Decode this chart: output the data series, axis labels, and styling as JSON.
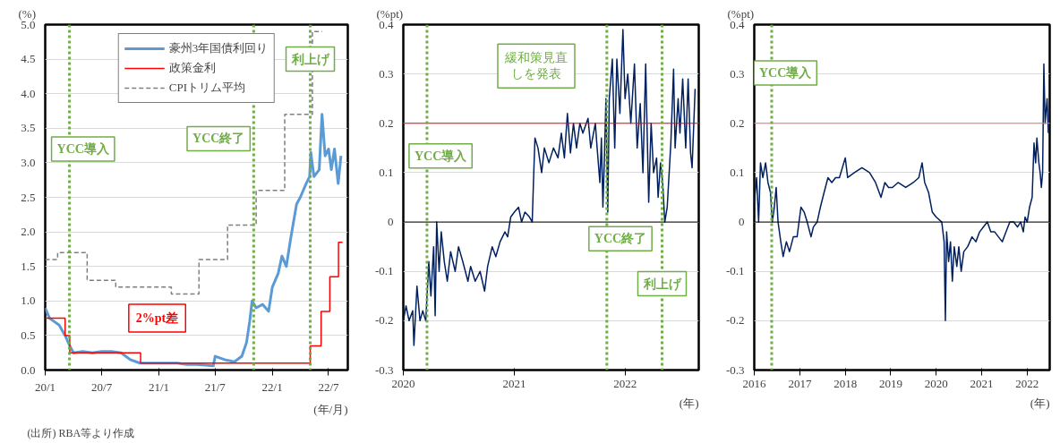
{
  "chart_data": [
    {
      "type": "line",
      "ylabel": "(%)",
      "xlabel": "(年/月)",
      "xlim": [
        "2020-01-01",
        "2022-09-01"
      ],
      "ylim": [
        0,
        5
      ],
      "xticks": [
        {
          "value": "2020-01",
          "label": "20/1"
        },
        {
          "value": "2020-07",
          "label": "20/7"
        },
        {
          "value": "2021-01",
          "label": "21/1"
        },
        {
          "value": "2021-07",
          "label": "21/7"
        },
        {
          "value": "2022-01",
          "label": "22/1"
        },
        {
          "value": "2022-07",
          "label": "22/7"
        }
      ],
      "yticks": [
        {
          "value": 0,
          "label": "0.0"
        },
        {
          "value": 0.5,
          "label": "0.5"
        },
        {
          "value": 1,
          "label": "1.0"
        },
        {
          "value": 1.5,
          "label": "1.5"
        },
        {
          "value": 2,
          "label": "2.0"
        },
        {
          "value": 2.5,
          "label": "2.5"
        },
        {
          "value": 3,
          "label": "3.0"
        },
        {
          "value": 3.5,
          "label": "3.5"
        },
        {
          "value": 4,
          "label": "4.0"
        },
        {
          "value": 4.5,
          "label": "4.5"
        },
        {
          "value": 5,
          "label": "5.0"
        }
      ],
      "grid": "y",
      "legend": "top",
      "series": [
        {
          "name": "豪州3年国債利回り",
          "type": "line",
          "color": "#5b9bd5",
          "x": [
            "2020-01-01",
            "2020-01-15",
            "2020-02-15",
            "2020-03-05",
            "2020-03-20",
            "2020-04-01",
            "2020-05-01",
            "2020-06-01",
            "2020-07-01",
            "2020-08-01",
            "2020-09-01",
            "2020-10-01",
            "2020-11-01",
            "2020-12-01",
            "2021-01-01",
            "2021-02-01",
            "2021-03-01",
            "2021-04-01",
            "2021-05-01",
            "2021-06-01",
            "2021-06-25",
            "2021-07-01",
            "2021-08-01",
            "2021-09-01",
            "2021-09-25",
            "2021-10-10",
            "2021-10-20",
            "2021-10-28",
            "2021-11-10",
            "2021-12-01",
            "2021-12-20",
            "2022-01-01",
            "2022-01-20",
            "2022-02-01",
            "2022-02-15",
            "2022-03-01",
            "2022-03-20",
            "2022-04-01",
            "2022-04-20",
            "2022-05-01",
            "2022-05-05",
            "2022-05-15",
            "2022-06-01",
            "2022-06-10",
            "2022-06-20",
            "2022-07-01",
            "2022-07-10",
            "2022-07-20",
            "2022-08-01",
            "2022-08-10"
          ],
          "values": [
            0.9,
            0.75,
            0.65,
            0.5,
            0.35,
            0.25,
            0.27,
            0.25,
            0.27,
            0.27,
            0.25,
            0.15,
            0.1,
            0.1,
            0.1,
            0.1,
            0.1,
            0.08,
            0.08,
            0.07,
            0.06,
            0.2,
            0.15,
            0.12,
            0.2,
            0.4,
            0.7,
            1.0,
            0.9,
            0.95,
            0.85,
            1.2,
            1.4,
            1.65,
            1.5,
            1.9,
            2.4,
            2.5,
            2.7,
            2.8,
            3.15,
            2.8,
            2.9,
            3.7,
            3.1,
            3.2,
            2.9,
            3.2,
            2.7,
            3.1
          ]
        },
        {
          "name": "政策金利",
          "type": "step",
          "color": "#ff0000",
          "x": [
            "2020-01-01",
            "2020-03-05",
            "2020-03-20",
            "2020-11-03",
            "2022-05-03",
            "2022-06-07",
            "2022-07-05",
            "2022-08-02",
            "2022-08-15"
          ],
          "values": [
            0.75,
            0.5,
            0.25,
            0.1,
            0.35,
            0.85,
            1.35,
            1.85,
            1.85
          ]
        },
        {
          "name": "CPIトリム平均",
          "type": "step",
          "line_style": "dashed",
          "color": "#7f7f7f",
          "x": [
            "2020-01-01",
            "2020-02-10",
            "2020-05-15",
            "2020-08-15",
            "2021-02-10",
            "2021-05-10",
            "2021-08-10",
            "2021-11-10",
            "2022-02-10",
            "2022-05-10",
            "2022-06-10"
          ],
          "values": [
            1.6,
            1.7,
            1.3,
            1.2,
            1.1,
            1.6,
            2.1,
            2.6,
            3.7,
            4.9,
            4.9
          ]
        }
      ],
      "ref_lines": [
        {
          "axis": "x",
          "value": "2020-03-19",
          "label": "YCC導入",
          "color": "#70ad47",
          "line_style": "dotted"
        },
        {
          "axis": "x",
          "value": "2021-11-02",
          "label": "YCC終了",
          "color": "#70ad47",
          "line_style": "dotted"
        },
        {
          "axis": "x",
          "value": "2022-05-03",
          "label": "利上げ",
          "color": "#70ad47",
          "line_style": "dotted"
        }
      ],
      "annotations": [
        "2%pt差",
        "(出所) RBA等より作成"
      ]
    },
    {
      "type": "line",
      "ylabel": "(%pt)",
      "xlabel": "(年)",
      "xlim": [
        "2020-01-01",
        "2022-09-01"
      ],
      "ylim": [
        -0.3,
        0.4
      ],
      "xticks": [
        {
          "value": "2020",
          "label": "2020"
        },
        {
          "value": "2021",
          "label": "2021"
        },
        {
          "value": "2022",
          "label": "2022"
        }
      ],
      "yticks": [
        -0.3,
        -0.2,
        -0.1,
        0,
        0.1,
        0.2,
        0.3,
        0.4
      ],
      "grid": "y",
      "series": [
        {
          "type": "line",
          "color": "#002060",
          "x": [
            "2020-01-01",
            "2020-01-10",
            "2020-01-20",
            "2020-02-01",
            "2020-02-05",
            "2020-02-15",
            "2020-02-25",
            "2020-03-05",
            "2020-03-15",
            "2020-03-25",
            "2020-04-01",
            "2020-04-10",
            "2020-04-15",
            "2020-04-20",
            "2020-04-28",
            "2020-05-05",
            "2020-05-15",
            "2020-05-25",
            "2020-06-05",
            "2020-06-20",
            "2020-07-01",
            "2020-07-15",
            "2020-08-01",
            "2020-08-10",
            "2020-08-25",
            "2020-09-10",
            "2020-09-25",
            "2020-10-05",
            "2020-10-20",
            "2020-11-01",
            "2020-11-15",
            "2020-12-01",
            "2020-12-10",
            "2020-12-20",
            "2021-01-01",
            "2021-01-15",
            "2021-01-25",
            "2021-02-05",
            "2021-02-20",
            "2021-03-01",
            "2021-03-05",
            "2021-03-10",
            "2021-03-20",
            "2021-04-01",
            "2021-04-10",
            "2021-04-25",
            "2021-05-10",
            "2021-05-25",
            "2021-06-05",
            "2021-06-15",
            "2021-06-25",
            "2021-07-05",
            "2021-07-15",
            "2021-07-25",
            "2021-08-05",
            "2021-08-15",
            "2021-09-01",
            "2021-09-10",
            "2021-09-25",
            "2021-10-01",
            "2021-10-10",
            "2021-10-15",
            "2021-10-20",
            "2021-10-25",
            "2021-10-30",
            "2021-11-05",
            "2021-11-10",
            "2021-11-20",
            "2021-11-28",
            "2021-12-05",
            "2021-12-15",
            "2021-12-25",
            "2022-01-01",
            "2022-01-10",
            "2022-01-20",
            "2022-02-01",
            "2022-02-10",
            "2022-02-20",
            "2022-03-01",
            "2022-03-10",
            "2022-03-20",
            "2022-03-28",
            "2022-04-05",
            "2022-04-15",
            "2022-04-20",
            "2022-04-28",
            "2022-05-05",
            "2022-05-12",
            "2022-05-20",
            "2022-06-01",
            "2022-06-10",
            "2022-06-15",
            "2022-06-25",
            "2022-07-01",
            "2022-07-10",
            "2022-07-20",
            "2022-07-28",
            "2022-08-05",
            "2022-08-10",
            "2022-08-20"
          ],
          "values": [
            -0.2,
            -0.17,
            -0.2,
            -0.18,
            -0.25,
            -0.13,
            -0.2,
            -0.18,
            -0.2,
            -0.08,
            -0.15,
            -0.05,
            -0.19,
            0.0,
            -0.1,
            -0.02,
            -0.08,
            -0.12,
            -0.06,
            -0.1,
            -0.05,
            -0.08,
            -0.12,
            -0.09,
            -0.12,
            -0.1,
            -0.14,
            -0.09,
            -0.05,
            -0.07,
            -0.04,
            -0.02,
            -0.03,
            0.01,
            0.02,
            0.03,
            0.0,
            0.02,
            0.01,
            0.0,
            0.08,
            0.17,
            0.15,
            0.1,
            0.15,
            0.12,
            0.15,
            0.13,
            0.18,
            0.13,
            0.22,
            0.14,
            0.2,
            0.15,
            0.2,
            0.18,
            0.21,
            0.15,
            0.2,
            0.15,
            0.08,
            0.17,
            0.03,
            0.13,
            0.25,
            0.02,
            0.25,
            0.33,
            0.15,
            0.33,
            0.22,
            0.39,
            0.25,
            0.3,
            0.2,
            0.32,
            0.15,
            0.24,
            0.1,
            0.32,
            0.04,
            0.2,
            0.1,
            0.13,
            0.05,
            0.12,
            0.08,
            0.0,
            0.03,
            0.16,
            0.31,
            0.15,
            0.25,
            0.18,
            0.29,
            0.15,
            0.29,
            0.14,
            0.11,
            0.27
          ]
        }
      ],
      "ref_lines": [
        {
          "axis": "y",
          "value": 0,
          "color": "#000000",
          "line_style": "solid"
        },
        {
          "axis": "y",
          "value": 0.2,
          "color": "#ff0000",
          "line_style": "solid"
        },
        {
          "axis": "x",
          "value": "2020-03-19",
          "label": "YCC導入",
          "color": "#70ad47",
          "line_style": "dotted"
        },
        {
          "axis": "x",
          "value": "2021-11-02",
          "label": "YCC終了",
          "color": "#70ad47",
          "line_style": "dotted"
        },
        {
          "axis": "x",
          "value": "2022-05-03",
          "label": "利上げ",
          "color": "#70ad47",
          "line_style": "dotted"
        }
      ],
      "annotations": [
        "緩和策見直しを発表"
      ]
    },
    {
      "type": "line",
      "ylabel": "(%pt)",
      "xlabel": "(年)",
      "xlim": [
        "2016-01-01",
        "2022-07-01"
      ],
      "ylim": [
        -0.3,
        0.4
      ],
      "xticks": [
        {
          "value": "2016",
          "label": "2016"
        },
        {
          "value": "2017",
          "label": "2017"
        },
        {
          "value": "2018",
          "label": "2018"
        },
        {
          "value": "2019",
          "label": "2019"
        },
        {
          "value": "2020",
          "label": "2020"
        },
        {
          "value": "2021",
          "label": "2021"
        },
        {
          "value": "2022",
          "label": "2022"
        }
      ],
      "yticks": [
        -0.3,
        -0.2,
        -0.1,
        0,
        0.1,
        0.2,
        0.3,
        0.4
      ],
      "grid": "y",
      "series": [
        {
          "type": "line",
          "color": "#002060",
          "x": [
            "2016-01-01",
            "2016-01-20",
            "2016-02-05",
            "2016-02-20",
            "2016-03-10",
            "2016-04-01",
            "2016-04-20",
            "2016-05-10",
            "2016-05-25",
            "2016-06-10",
            "2016-06-25",
            "2016-07-10",
            "2016-08-01",
            "2016-08-20",
            "2016-09-15",
            "2016-10-10",
            "2016-11-10",
            "2016-12-10",
            "2017-01-10",
            "2017-02-05",
            "2017-03-01",
            "2017-04-01",
            "2017-04-20",
            "2017-05-20",
            "2017-06-15",
            "2017-07-15",
            "2017-08-15",
            "2017-09-15",
            "2017-10-15",
            "2017-11-15",
            "2018-01-01",
            "2018-01-20",
            "2018-03-15",
            "2018-05-15",
            "2018-07-15",
            "2018-09-01",
            "2018-10-15",
            "2018-11-15",
            "2018-12-15",
            "2019-01-15",
            "2019-03-01",
            "2019-05-01",
            "2019-07-01",
            "2019-08-15",
            "2019-09-10",
            "2019-10-01",
            "2019-11-01",
            "2019-12-01",
            "2020-01-01",
            "2020-02-15",
            "2020-03-05",
            "2020-03-15",
            "2020-03-25",
            "2020-04-10",
            "2020-04-25",
            "2020-05-10",
            "2020-05-25",
            "2020-06-15",
            "2020-07-01",
            "2020-07-20",
            "2020-08-10",
            "2020-09-10",
            "2020-10-15",
            "2020-11-15",
            "2020-12-15",
            "2021-01-15",
            "2021-02-15",
            "2021-03-15",
            "2021-04-15",
            "2021-05-15",
            "2021-06-15",
            "2021-07-15",
            "2021-08-15",
            "2021-09-15",
            "2021-10-15",
            "2021-11-10",
            "2021-12-01",
            "2021-12-15",
            "2022-01-01",
            "2022-01-20",
            "2022-02-10",
            "2022-02-25",
            "2022-03-10",
            "2022-03-20",
            "2022-04-05",
            "2022-04-15",
            "2022-04-25",
            "2022-05-05",
            "2022-05-15",
            "2022-05-25",
            "2022-06-10",
            "2022-06-20"
          ],
          "values": [
            0.04,
            0.09,
            0.0,
            0.12,
            0.09,
            0.12,
            0.08,
            0.06,
            0.0,
            0.03,
            0.07,
            0.0,
            -0.04,
            -0.07,
            -0.04,
            -0.06,
            -0.03,
            -0.03,
            0.03,
            0.02,
            0.0,
            -0.03,
            -0.01,
            0.0,
            0.03,
            0.06,
            0.09,
            0.08,
            0.09,
            0.09,
            0.13,
            0.09,
            0.1,
            0.11,
            0.1,
            0.08,
            0.05,
            0.08,
            0.07,
            0.07,
            0.08,
            0.07,
            0.08,
            0.09,
            0.12,
            0.08,
            0.06,
            0.02,
            0.01,
            0.0,
            -0.04,
            -0.2,
            -0.02,
            -0.08,
            -0.04,
            -0.12,
            -0.05,
            -0.09,
            -0.05,
            -0.1,
            -0.06,
            -0.05,
            -0.03,
            -0.04,
            -0.02,
            -0.01,
            0.0,
            -0.02,
            -0.02,
            -0.03,
            -0.04,
            -0.02,
            0.0,
            0.0,
            -0.01,
            0.0,
            -0.02,
            0.01,
            0.0,
            0.03,
            0.05,
            0.16,
            0.12,
            0.17,
            0.12,
            0.1,
            0.07,
            0.1,
            0.32,
            0.2,
            0.25,
            0.18
          ]
        }
      ],
      "ref_lines": [
        {
          "axis": "y",
          "value": 0,
          "color": "#000000",
          "line_style": "solid"
        },
        {
          "axis": "y",
          "value": 0.2,
          "color": "#ff7070",
          "line_style": "solid"
        },
        {
          "axis": "x",
          "value": "2016-05-20",
          "label": "YCC導入",
          "color": "#70ad47",
          "line_style": "dotted"
        }
      ]
    }
  ]
}
